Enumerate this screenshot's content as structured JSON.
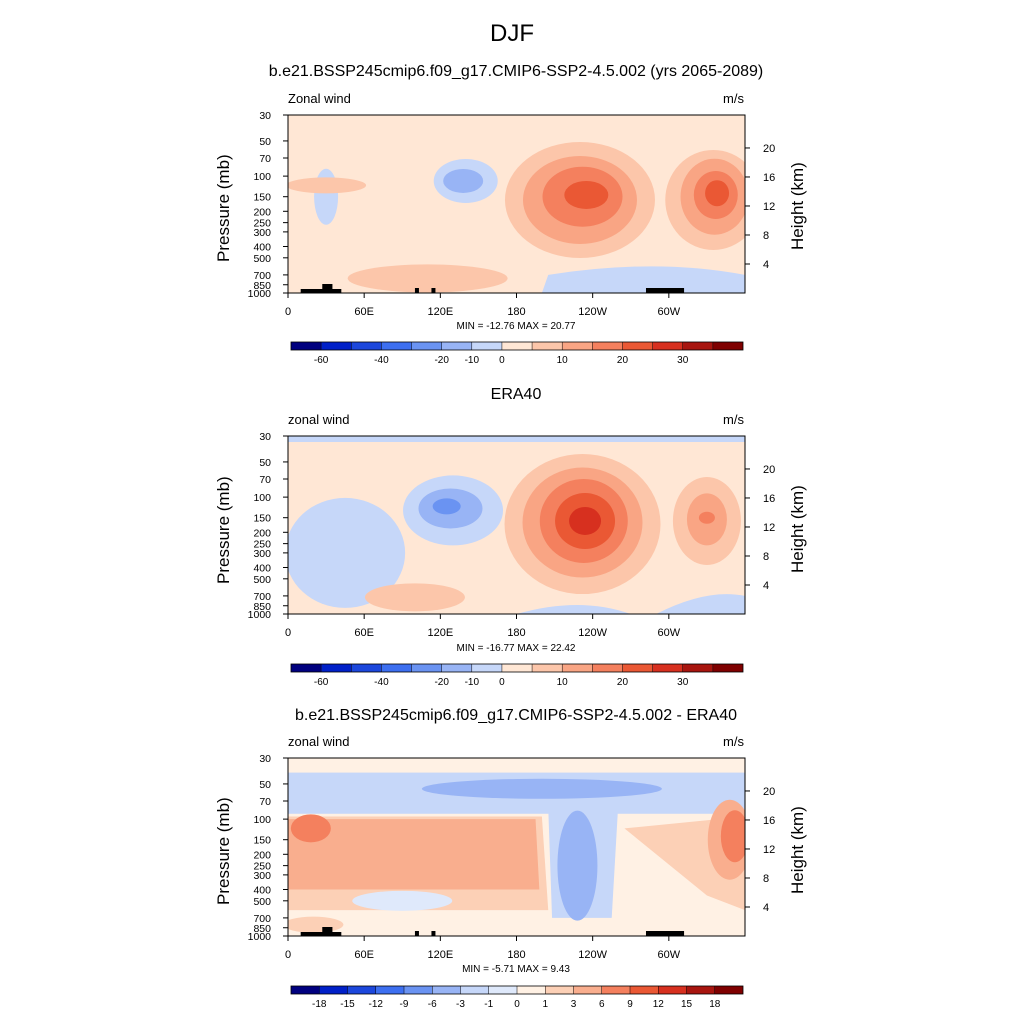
{
  "figure": {
    "title": "DJF"
  },
  "palettes": {
    "wind": [
      "#00007f",
      "#0020c8",
      "#1c47dc",
      "#3d6ff0",
      "#6a93f2",
      "#98b4f5",
      "#c6d7f9",
      "#ffe7d5",
      "#fcc6aa",
      "#f9a584",
      "#f4805e",
      "#ea5834",
      "#d7301f",
      "#a8150f",
      "#7f0000"
    ],
    "diff": [
      "#00007f",
      "#0020c8",
      "#1c47dc",
      "#3d6ff0",
      "#6a93f2",
      "#98b4f5",
      "#c6d7f9",
      "#dfe9fb",
      "#fff1e4",
      "#fcd0b6",
      "#f9ae8e",
      "#f4805e",
      "#ea5834",
      "#d7301f",
      "#a8150f",
      "#7f0000"
    ]
  },
  "panels": [
    {
      "title": "b.e21.BSSP245cmip6.f09_g17.CMIP6-SSP2-4.5.002 (yrs 2065-2089)",
      "left_label": "Zonal wind",
      "right_label": "m/s",
      "y_axis_label": "Pressure (mb)",
      "y2_axis_label": "Height (km)",
      "minmax": "MIN = -12.76  MAX =  20.77",
      "colorbar_labels": [
        "-60",
        "-40",
        "-20",
        "-10",
        "0",
        "10",
        "20",
        "30"
      ]
    },
    {
      "title": "ERA40",
      "left_label": "zonal wind",
      "right_label": "m/s",
      "y_axis_label": "Pressure (mb)",
      "y2_axis_label": "Height (km)",
      "minmax": "MIN = -16.77  MAX =  22.42",
      "colorbar_labels": [
        "-60",
        "-40",
        "-20",
        "-10",
        "0",
        "10",
        "20",
        "30"
      ]
    },
    {
      "title": "b.e21.BSSP245cmip6.f09_g17.CMIP6-SSP2-4.5.002 - ERA40",
      "left_label": "zonal wind",
      "right_label": "m/s",
      "y_axis_label": "Pressure (mb)",
      "y2_axis_label": "Height (km)",
      "minmax": "MIN = -5.71  MAX =  9.43",
      "colorbar_labels": [
        "-18",
        "-15",
        "-12",
        "-9",
        "-6",
        "-3",
        "-1",
        "0",
        "1",
        "3",
        "6",
        "9",
        "12",
        "15",
        "18"
      ]
    }
  ],
  "chart_data": [
    {
      "type": "heatmap",
      "title": "b.e21.BSSP245cmip6.f09_g17.CMIP6-SSP2-4.5.002 (yrs 2065-2089)",
      "xlabel": "",
      "ylabel": "Pressure (mb)",
      "y2label": "Height (km)",
      "x_ticks": [
        "0",
        "60E",
        "120E",
        "180",
        "120W",
        "60W"
      ],
      "y_ticks": [
        "30",
        "50",
        "70",
        "100",
        "150",
        "200",
        "250",
        "300",
        "400",
        "500",
        "700",
        "850",
        "1000"
      ],
      "y2_ticks": [
        "20",
        "16",
        "12",
        "8",
        "4"
      ],
      "min": -12.76,
      "max": 20.77,
      "features": [
        {
          "lon": 140,
          "p": 110,
          "value": -10
        },
        {
          "lon": 230,
          "p": 150,
          "value": 20
        },
        {
          "lon": 335,
          "p": 140,
          "value": 20
        }
      ]
    },
    {
      "type": "heatmap",
      "title": "ERA40",
      "xlabel": "",
      "ylabel": "Pressure (mb)",
      "y2label": "Height (km)",
      "x_ticks": [
        "0",
        "60E",
        "120E",
        "180",
        "120W",
        "60W"
      ],
      "y_ticks": [
        "30",
        "50",
        "70",
        "100",
        "150",
        "200",
        "250",
        "300",
        "400",
        "500",
        "700",
        "850",
        "1000"
      ],
      "y2_ticks": [
        "20",
        "16",
        "12",
        "8",
        "4"
      ],
      "min": -16.77,
      "max": 22.42,
      "features": [
        {
          "lon": 125,
          "p": 120,
          "value": -15
        },
        {
          "lon": 230,
          "p": 170,
          "value": 22
        },
        {
          "lon": 330,
          "p": 150,
          "value": 10
        }
      ]
    },
    {
      "type": "heatmap",
      "title": "b.e21.BSSP245cmip6.f09_g17.CMIP6-SSP2-4.5.002 - ERA40",
      "xlabel": "",
      "ylabel": "Pressure (mb)",
      "y2label": "Height (km)",
      "x_ticks": [
        "0",
        "60E",
        "120E",
        "180",
        "120W",
        "60W"
      ],
      "y_ticks": [
        "30",
        "50",
        "70",
        "100",
        "150",
        "200",
        "250",
        "300",
        "400",
        "500",
        "700",
        "850",
        "1000"
      ],
      "y2_ticks": [
        "20",
        "16",
        "12",
        "8",
        "4"
      ],
      "min": -5.71,
      "max": 9.43,
      "features": [
        {
          "lon": 100,
          "p": 150,
          "value": 6
        },
        {
          "lon": 230,
          "p": 250,
          "value": -6
        },
        {
          "lon": 350,
          "p": 150,
          "value": 9
        }
      ]
    }
  ]
}
